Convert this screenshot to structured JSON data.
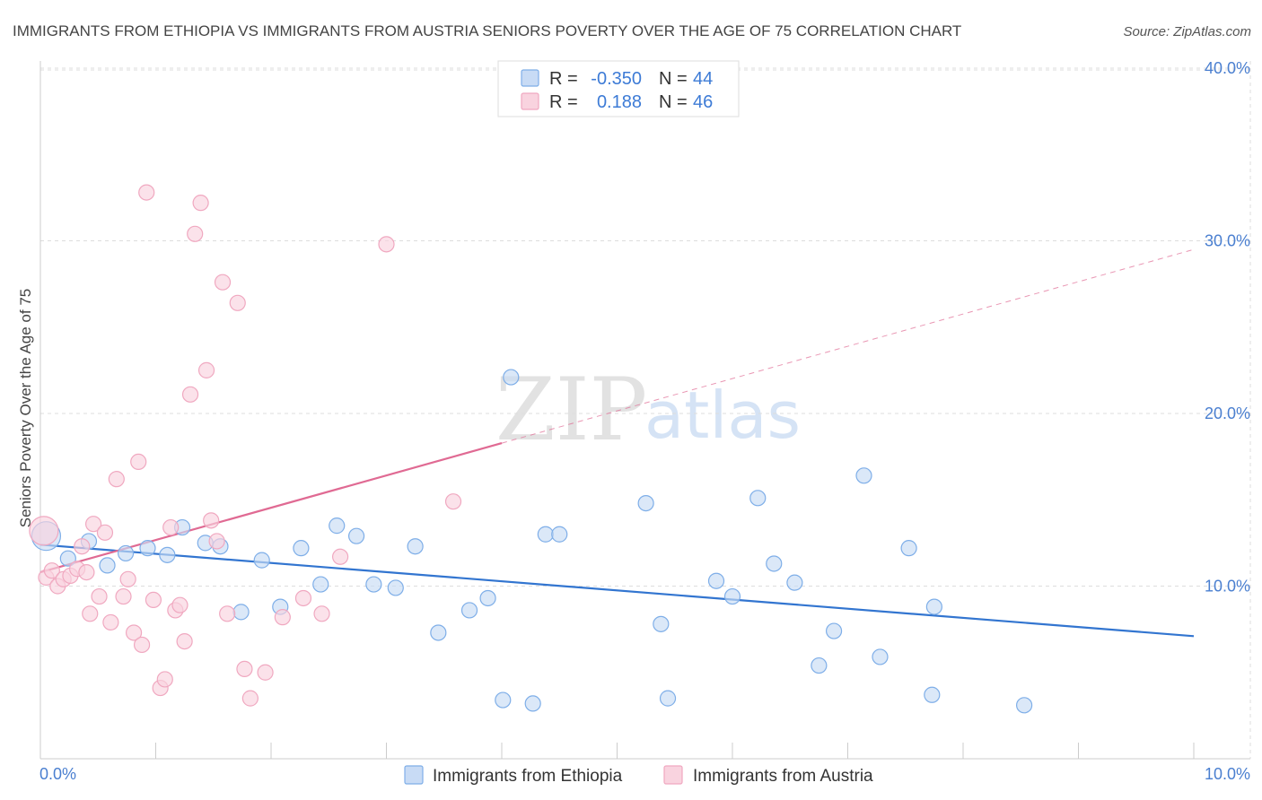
{
  "chart_data": {
    "type": "scatter",
    "title": "IMMIGRANTS FROM ETHIOPIA VS IMMIGRANTS FROM AUSTRIA SENIORS POVERTY OVER THE AGE OF 75 CORRELATION CHART",
    "source": "Source: ZipAtlas.com",
    "xlabel": "",
    "ylabel": "Seniors Poverty Over the Age of 75",
    "xlim": [
      0,
      10
    ],
    "ylim": [
      0,
      40
    ],
    "x_tick_labels": [
      "0.0%",
      "10.0%"
    ],
    "y_ticks": [
      10,
      20,
      30,
      40
    ],
    "y_tick_labels": [
      "10.0%",
      "20.0%",
      "30.0%",
      "40.0%"
    ],
    "watermark": {
      "part1": "ZIP",
      "part2": "atlas"
    },
    "legend_stats": [
      {
        "r_label": "R =",
        "r_value": "-0.350",
        "n_label": "N =",
        "n_value": "44"
      },
      {
        "r_label": "R =",
        "r_value": "0.188",
        "n_label": "N =",
        "n_value": "46"
      }
    ],
    "series": [
      {
        "name": "Immigrants from Ethiopia",
        "color": "#7eaee8",
        "fill": "#c8dbf5",
        "line_color": "#3275d0",
        "trend": {
          "x": [
            0,
            10
          ],
          "y": [
            12.4,
            7.1
          ],
          "solid_until": 10
        },
        "points": [
          {
            "x": 0.05,
            "y": 12.9,
            "size": "large"
          },
          {
            "x": 0.24,
            "y": 11.6
          },
          {
            "x": 0.42,
            "y": 12.6
          },
          {
            "x": 0.58,
            "y": 11.2
          },
          {
            "x": 0.74,
            "y": 11.9
          },
          {
            "x": 0.93,
            "y": 12.2
          },
          {
            "x": 1.1,
            "y": 11.8
          },
          {
            "x": 1.23,
            "y": 13.4
          },
          {
            "x": 1.43,
            "y": 12.5
          },
          {
            "x": 1.56,
            "y": 12.3
          },
          {
            "x": 1.74,
            "y": 8.5
          },
          {
            "x": 1.92,
            "y": 11.5
          },
          {
            "x": 2.08,
            "y": 8.8
          },
          {
            "x": 2.26,
            "y": 12.2
          },
          {
            "x": 2.43,
            "y": 10.1
          },
          {
            "x": 2.57,
            "y": 13.5
          },
          {
            "x": 2.74,
            "y": 12.9
          },
          {
            "x": 2.89,
            "y": 10.1
          },
          {
            "x": 3.08,
            "y": 9.9
          },
          {
            "x": 3.25,
            "y": 12.3
          },
          {
            "x": 3.45,
            "y": 7.3
          },
          {
            "x": 3.72,
            "y": 8.6
          },
          {
            "x": 3.88,
            "y": 9.3
          },
          {
            "x": 4.01,
            "y": 3.4
          },
          {
            "x": 4.08,
            "y": 22.1
          },
          {
            "x": 4.27,
            "y": 3.2
          },
          {
            "x": 4.38,
            "y": 13.0
          },
          {
            "x": 4.5,
            "y": 13.0
          },
          {
            "x": 5.25,
            "y": 14.8
          },
          {
            "x": 5.38,
            "y": 7.8
          },
          {
            "x": 5.44,
            "y": 3.5
          },
          {
            "x": 5.86,
            "y": 10.3
          },
          {
            "x": 6.0,
            "y": 9.4
          },
          {
            "x": 6.22,
            "y": 15.1
          },
          {
            "x": 6.36,
            "y": 11.3
          },
          {
            "x": 6.54,
            "y": 10.2
          },
          {
            "x": 6.75,
            "y": 5.4
          },
          {
            "x": 6.88,
            "y": 7.4
          },
          {
            "x": 7.14,
            "y": 16.4
          },
          {
            "x": 7.28,
            "y": 5.9
          },
          {
            "x": 7.53,
            "y": 12.2
          },
          {
            "x": 7.73,
            "y": 3.7
          },
          {
            "x": 7.75,
            "y": 8.8
          },
          {
            "x": 8.53,
            "y": 3.1
          }
        ]
      },
      {
        "name": "Immigrants from Austria",
        "color": "#f0a8c0",
        "fill": "#f9d3df",
        "line_color": "#e06a93",
        "trend": {
          "x": [
            0,
            10
          ],
          "y": [
            10.8,
            29.5
          ],
          "solid_until": 4.0
        },
        "points": [
          {
            "x": 0.03,
            "y": 13.2,
            "size": "large"
          },
          {
            "x": 0.05,
            "y": 10.5
          },
          {
            "x": 0.1,
            "y": 10.9
          },
          {
            "x": 0.15,
            "y": 10.0
          },
          {
            "x": 0.2,
            "y": 10.4
          },
          {
            "x": 0.26,
            "y": 10.6
          },
          {
            "x": 0.32,
            "y": 11.0
          },
          {
            "x": 0.36,
            "y": 12.3
          },
          {
            "x": 0.4,
            "y": 10.8
          },
          {
            "x": 0.43,
            "y": 8.4
          },
          {
            "x": 0.46,
            "y": 13.6
          },
          {
            "x": 0.51,
            "y": 9.4
          },
          {
            "x": 0.56,
            "y": 13.1
          },
          {
            "x": 0.61,
            "y": 7.9
          },
          {
            "x": 0.66,
            "y": 16.2
          },
          {
            "x": 0.72,
            "y": 9.4
          },
          {
            "x": 0.76,
            "y": 10.4
          },
          {
            "x": 0.81,
            "y": 7.3
          },
          {
            "x": 0.85,
            "y": 17.2
          },
          {
            "x": 0.88,
            "y": 6.6
          },
          {
            "x": 0.92,
            "y": 32.8
          },
          {
            "x": 0.98,
            "y": 9.2
          },
          {
            "x": 1.04,
            "y": 4.1
          },
          {
            "x": 1.08,
            "y": 4.6
          },
          {
            "x": 1.13,
            "y": 13.4
          },
          {
            "x": 1.17,
            "y": 8.6
          },
          {
            "x": 1.21,
            "y": 8.9
          },
          {
            "x": 1.25,
            "y": 6.8
          },
          {
            "x": 1.3,
            "y": 21.1
          },
          {
            "x": 1.34,
            "y": 30.4
          },
          {
            "x": 1.39,
            "y": 32.2
          },
          {
            "x": 1.44,
            "y": 22.5
          },
          {
            "x": 1.48,
            "y": 13.8
          },
          {
            "x": 1.53,
            "y": 12.6
          },
          {
            "x": 1.58,
            "y": 27.6
          },
          {
            "x": 1.62,
            "y": 8.4
          },
          {
            "x": 1.71,
            "y": 26.4
          },
          {
            "x": 1.77,
            "y": 5.2
          },
          {
            "x": 1.82,
            "y": 3.5
          },
          {
            "x": 1.95,
            "y": 5.0
          },
          {
            "x": 2.1,
            "y": 8.2
          },
          {
            "x": 2.28,
            "y": 9.3
          },
          {
            "x": 2.44,
            "y": 8.4
          },
          {
            "x": 2.6,
            "y": 11.7
          },
          {
            "x": 3.0,
            "y": 29.8
          },
          {
            "x": 3.58,
            "y": 14.9
          }
        ]
      }
    ]
  }
}
